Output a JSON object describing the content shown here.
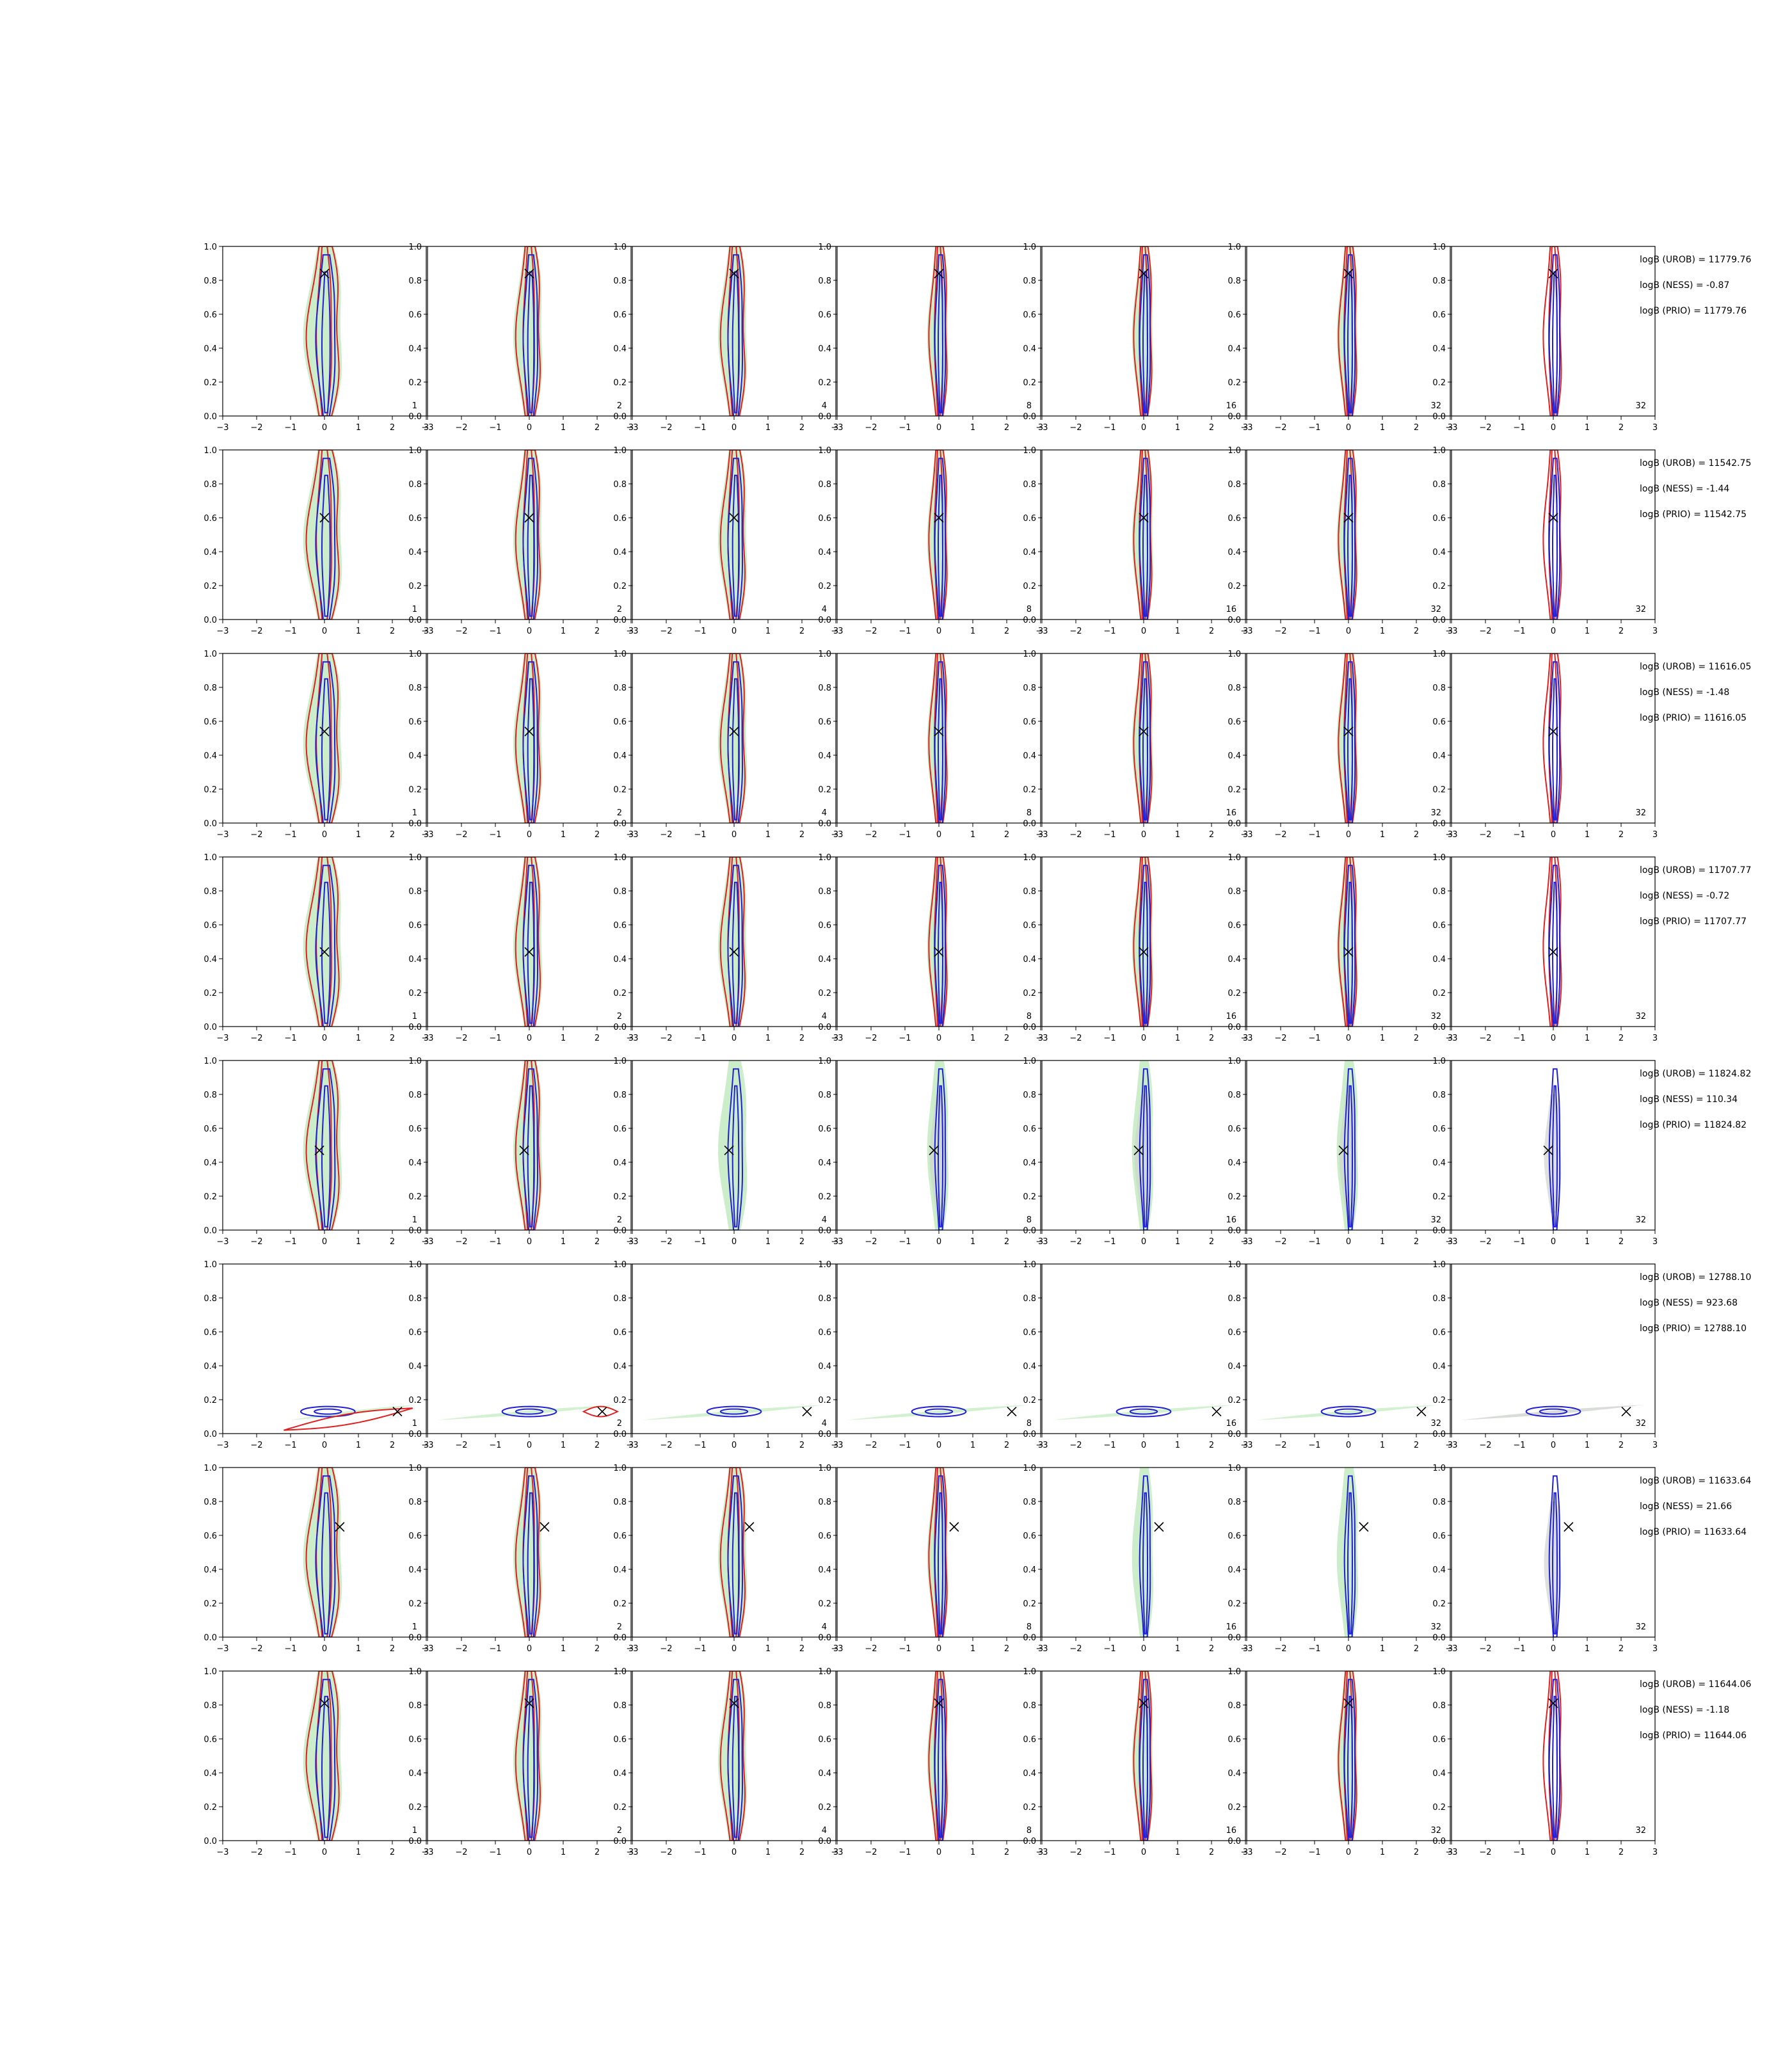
{
  "chart_data": {
    "type": "contour-grid",
    "rows": 8,
    "cols": 7,
    "xlim": [
      -3,
      3
    ],
    "ylim": [
      0.0,
      1.0
    ],
    "xticks": [
      -3,
      -2,
      -1,
      0,
      1,
      2,
      3
    ],
    "yticks": [
      0.0,
      0.2,
      0.4,
      0.6,
      0.8,
      1.0
    ],
    "x_tick_labels": [
      "−3",
      "−2",
      "−1",
      "0",
      "1",
      "2",
      "3"
    ],
    "y_tick_labels": [
      "0.0",
      "0.2",
      "0.4",
      "0.6",
      "0.8",
      "1.0"
    ],
    "column_labels": [
      "1",
      "2",
      "4",
      "8",
      "16",
      "32",
      "32"
    ],
    "colors": {
      "green_fill": "#c8ecc6",
      "gray_fill": "#cfd3cf",
      "red_contour": "#e02020",
      "blue_contour": "#1f1fd6",
      "marker": "#000000"
    },
    "row_data": [
      {
        "marker": [
          0.0,
          0.84
        ],
        "stats": [
          "logB (UROB) = 11779.76",
          "logB (NESS) = -0.87",
          "logB (PRIO) = 11779.76"
        ]
      },
      {
        "marker": [
          0.0,
          0.6
        ],
        "stats": [
          "logB (UROB) = 11542.75",
          "logB (NESS) = -1.44",
          "logB (PRIO) = 11542.75"
        ]
      },
      {
        "marker": [
          0.0,
          0.54
        ],
        "stats": [
          "logB (UROB) = 11616.05",
          "logB (NESS) = -1.48",
          "logB (PRIO) = 11616.05"
        ]
      },
      {
        "marker": [
          0.0,
          0.44
        ],
        "stats": [
          "logB (UROB) = 11707.77",
          "logB (NESS) = -0.72",
          "logB (PRIO) = 11707.77"
        ]
      },
      {
        "marker": [
          -0.15,
          0.47
        ],
        "stats": [
          "logB (UROB) = 11824.82",
          "logB (NESS) = 110.34",
          "logB (PRIO) = 11824.82"
        ]
      },
      {
        "marker": [
          2.15,
          0.13
        ],
        "stats": [
          "logB (UROB) = 12788.10",
          "logB (NESS) = 923.68",
          "logB (PRIO) = 12788.10"
        ]
      },
      {
        "marker": [
          0.45,
          0.65
        ],
        "stats": [
          "logB (UROB) = 11633.64",
          "logB (NESS) = 21.66",
          "logB (PRIO) = 11633.64"
        ]
      },
      {
        "marker": [
          0.0,
          0.81
        ],
        "stats": [
          "logB (UROB) = 11644.06",
          "logB (NESS) = -1.18",
          "logB (PRIO) = 11644.06"
        ]
      }
    ]
  }
}
